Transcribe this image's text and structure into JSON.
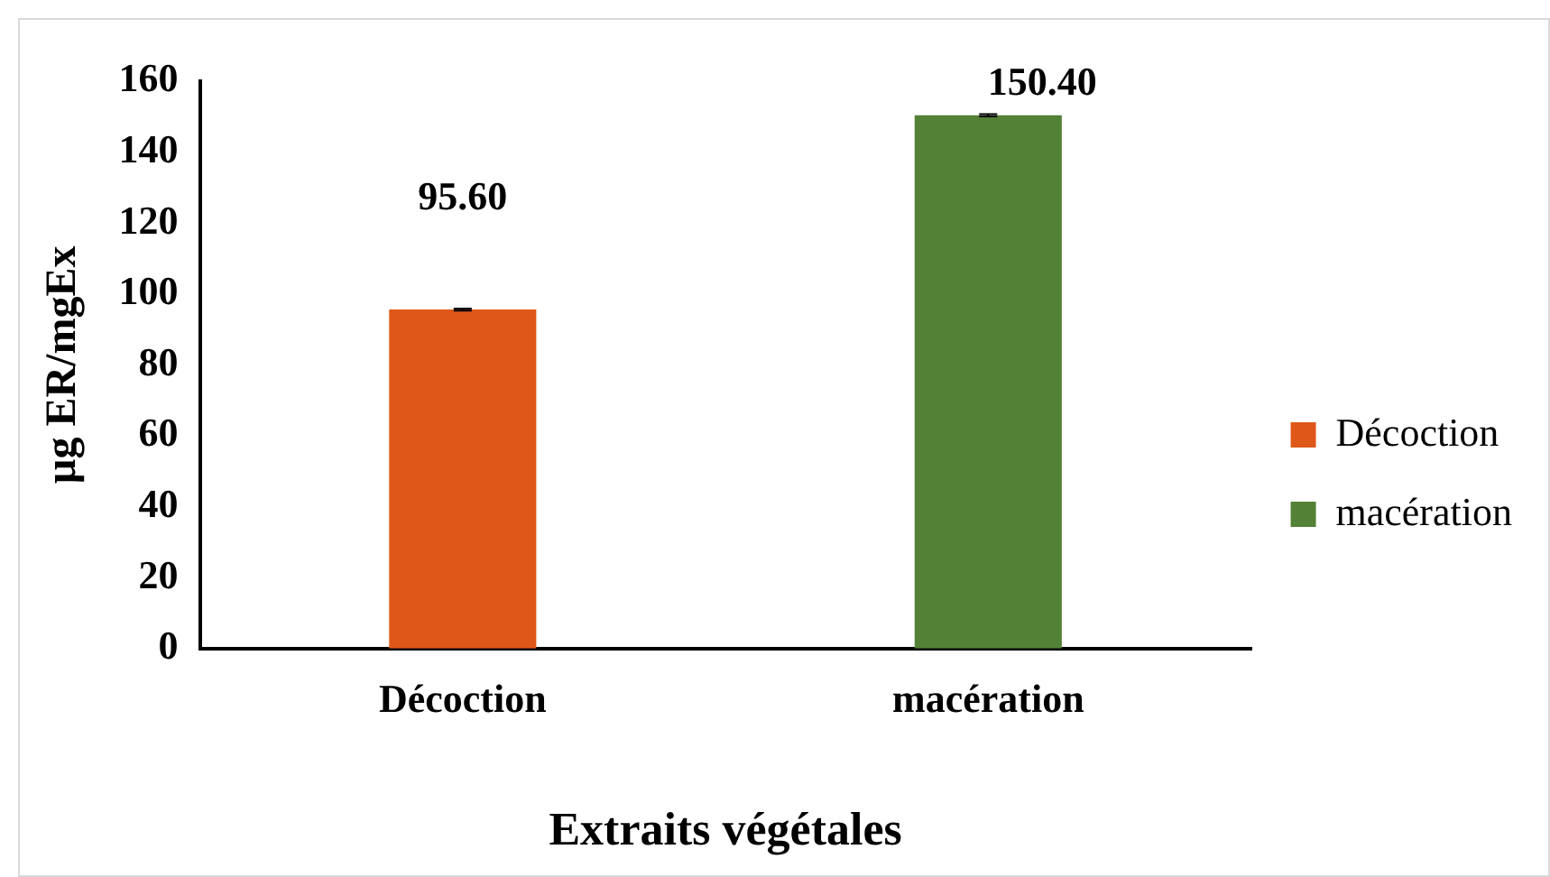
{
  "chart_data": {
    "type": "bar",
    "xlabel": "Extraits végétales",
    "ylabel": "µg ER/mgEx",
    "categories": [
      "Décoction",
      "macération"
    ],
    "series": [
      {
        "name": "Décoction",
        "color": "#e05819",
        "values": [
          95.6,
          null
        ],
        "errors": [
          0.3,
          null
        ],
        "value_labels": [
          "95.60",
          null
        ]
      },
      {
        "name": "macération",
        "color": "#538135",
        "values": [
          null,
          150.4
        ],
        "errors": [
          null,
          0.3
        ],
        "value_labels": [
          null,
          "150.40"
        ]
      }
    ],
    "ylim": [
      0,
      160
    ],
    "yticks": [
      0,
      20,
      40,
      60,
      80,
      100,
      120,
      140,
      160
    ],
    "grid": false,
    "legend": "right"
  }
}
